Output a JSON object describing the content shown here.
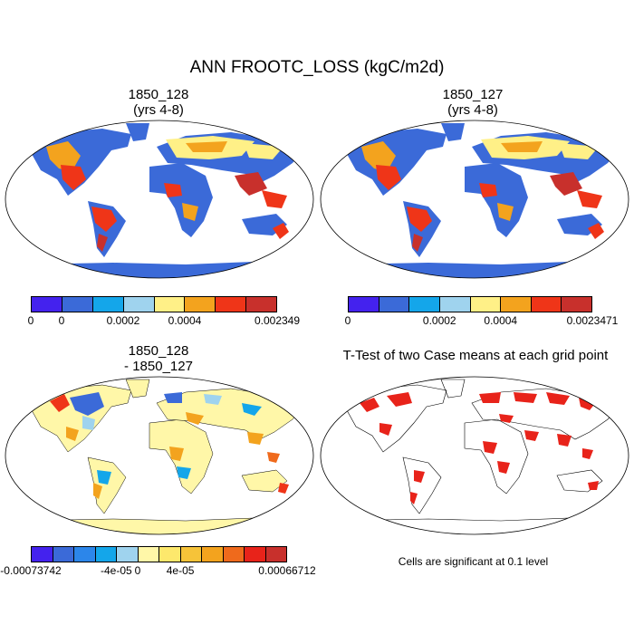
{
  "figure": {
    "title": "ANN FROOTC_LOSS (kgC/m2d)"
  },
  "panels": [
    {
      "id": "p1",
      "title_line1": "1850_128",
      "title_line2": "(yrs 4-8)"
    },
    {
      "id": "p2",
      "title_line1": "1850_127",
      "title_line2": "(yrs 4-8)"
    },
    {
      "id": "p3",
      "title_line1": "1850_128",
      "title_line2": "- 1850_127"
    },
    {
      "id": "p4",
      "title_line1": "T-Test of two Case means at each grid point",
      "title_line2": ""
    }
  ],
  "colorbars": [
    {
      "colors": [
        "#4422ee",
        "#3b6ad8",
        "#14a6ea",
        "#9fd3ee",
        "#fff087",
        "#f3a31e",
        "#ef3518",
        "#c8302c"
      ],
      "labels": [
        {
          "text": "0",
          "boundary": 0
        },
        {
          "text": "0",
          "boundary": 1
        },
        {
          "text": "0.0002",
          "boundary": 3
        },
        {
          "text": "0.0004",
          "boundary": 5
        },
        {
          "text": "0.002349",
          "boundary": 8
        }
      ]
    },
    {
      "colors": [
        "#4422ee",
        "#3b6ad8",
        "#14a6ea",
        "#9fd3ee",
        "#fff087",
        "#f3a31e",
        "#ef3518",
        "#c8302c"
      ],
      "labels": [
        {
          "text": "0",
          "boundary": 0
        },
        {
          "text": "0.0002",
          "boundary": 3
        },
        {
          "text": "0.0004",
          "boundary": 5
        },
        {
          "text": "0.0023471",
          "boundary": 8
        }
      ]
    },
    {
      "colors": [
        "#4422ee",
        "#3b6ad8",
        "#2c86ea",
        "#14a6ea",
        "#9fd3ee",
        "#fff7a8",
        "#fde86c",
        "#f6c339",
        "#f3a31e",
        "#ef6a1c",
        "#e8231a",
        "#c8302c"
      ],
      "labels": [
        {
          "text": "-0.00073742",
          "boundary": 0
        },
        {
          "text": "-4e-05",
          "boundary": 4
        },
        {
          "text": "0",
          "boundary": 5
        },
        {
          "text": "4e-05",
          "boundary": 7
        },
        {
          "text": "0.00066712",
          "boundary": 12
        }
      ]
    }
  ],
  "significance_note": "Cells are significant at 0.1 level",
  "map_colors": {
    "ocean": "#ffffff",
    "land_blue": "#3b6ad8",
    "land_low": "#fff087",
    "land_mid": "#f3a31e",
    "land_high": "#ef3518",
    "land_max": "#c8302c",
    "diff_neutral": "#fff7a8",
    "significant": "#e8231a",
    "coast": "#000000"
  }
}
